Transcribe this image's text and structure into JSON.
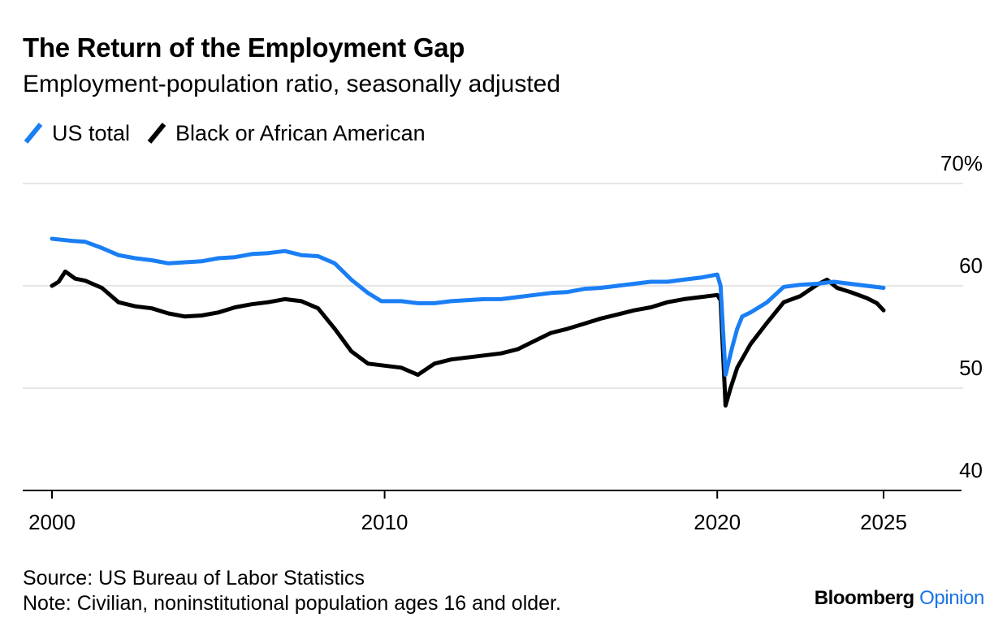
{
  "header": {
    "title": "The Return of the Employment Gap",
    "subtitle": "Employment-population ratio, seasonally adjusted"
  },
  "footer": {
    "source": "Source: US Bureau of Labor Statistics",
    "note": "Note: Civilian, noninstitutional population ages 16 and older.",
    "brand_main": "Bloomberg",
    "brand_accent": "Opinion"
  },
  "colors": {
    "us_total": "#1a7ef5",
    "black": "#000000",
    "grid": "#e6e6e6",
    "brand_accent": "#1a73e8"
  },
  "chart_data": {
    "type": "line",
    "title": "The Return of the Employment Gap",
    "subtitle": "Employment-population ratio, seasonally adjusted",
    "xlabel": "",
    "ylabel": "",
    "xlim": [
      2000,
      2027.3
    ],
    "ylim": [
      40,
      70
    ],
    "y_ticks": [
      40,
      50,
      60,
      70
    ],
    "y_tick_labels": [
      "40",
      "50",
      "60",
      "70%"
    ],
    "x_ticks": [
      2000,
      2010,
      2020,
      2025
    ],
    "x_tick_labels": [
      "2000",
      "2010",
      "2020",
      "2025"
    ],
    "grid": true,
    "legend_position": "top-left",
    "series": [
      {
        "name": "US total",
        "color": "#1a7ef5",
        "x": [
          2000.0,
          2000.3,
          2000.6,
          2001.0,
          2001.5,
          2002.0,
          2002.5,
          2003.0,
          2003.5,
          2004.0,
          2004.5,
          2005.0,
          2005.5,
          2006.0,
          2006.5,
          2007.0,
          2007.5,
          2008.0,
          2008.5,
          2009.0,
          2009.5,
          2009.9,
          2010.5,
          2011.0,
          2011.5,
          2012.0,
          2012.5,
          2013.0,
          2013.5,
          2014.0,
          2014.5,
          2015.0,
          2015.5,
          2016.0,
          2016.5,
          2017.0,
          2017.5,
          2018.0,
          2018.5,
          2019.0,
          2019.5,
          2020.0,
          2020.1,
          2020.25,
          2020.45,
          2020.6,
          2020.75,
          2021.0,
          2021.5,
          2022.0,
          2022.5,
          2023.0,
          2023.5,
          2024.0,
          2024.5,
          2025.0
        ],
        "y": [
          64.6,
          64.5,
          64.4,
          64.3,
          63.7,
          63.0,
          62.7,
          62.5,
          62.2,
          62.3,
          62.4,
          62.7,
          62.8,
          63.1,
          63.2,
          63.4,
          63.0,
          62.9,
          62.2,
          60.6,
          59.3,
          58.5,
          58.5,
          58.3,
          58.3,
          58.5,
          58.6,
          58.7,
          58.7,
          58.9,
          59.1,
          59.3,
          59.4,
          59.7,
          59.8,
          60.0,
          60.2,
          60.4,
          60.4,
          60.6,
          60.8,
          61.1,
          60.0,
          51.3,
          54.0,
          55.8,
          57.0,
          57.4,
          58.4,
          59.9,
          60.1,
          60.2,
          60.4,
          60.2,
          60.0,
          59.8
        ]
      },
      {
        "name": "Black or African American",
        "color": "#000000",
        "x": [
          2000.0,
          2000.2,
          2000.4,
          2000.7,
          2001.0,
          2001.5,
          2002.0,
          2002.5,
          2003.0,
          2003.5,
          2004.0,
          2004.5,
          2005.0,
          2005.5,
          2006.0,
          2006.5,
          2007.0,
          2007.5,
          2008.0,
          2008.5,
          2009.0,
          2009.5,
          2010.0,
          2010.5,
          2011.0,
          2011.5,
          2012.0,
          2012.5,
          2013.0,
          2013.5,
          2014.0,
          2014.5,
          2015.0,
          2015.5,
          2016.0,
          2016.5,
          2017.0,
          2017.5,
          2018.0,
          2018.5,
          2019.0,
          2019.5,
          2020.0,
          2020.1,
          2020.25,
          2020.4,
          2020.6,
          2021.0,
          2021.5,
          2022.0,
          2022.5,
          2023.0,
          2023.3,
          2023.6,
          2024.0,
          2024.5,
          2024.8,
          2025.0
        ],
        "y": [
          60.0,
          60.4,
          61.4,
          60.7,
          60.5,
          59.8,
          58.4,
          58.0,
          57.8,
          57.3,
          57.0,
          57.1,
          57.4,
          57.9,
          58.2,
          58.4,
          58.7,
          58.5,
          57.8,
          55.8,
          53.6,
          52.4,
          52.2,
          52.0,
          51.3,
          52.4,
          52.8,
          53.0,
          53.2,
          53.4,
          53.8,
          54.6,
          55.4,
          55.8,
          56.3,
          56.8,
          57.2,
          57.6,
          57.9,
          58.4,
          58.7,
          58.9,
          59.1,
          58.6,
          48.3,
          50.0,
          52.0,
          54.3,
          56.4,
          58.4,
          59.0,
          60.1,
          60.6,
          59.8,
          59.4,
          58.8,
          58.3,
          57.6
        ]
      }
    ]
  }
}
